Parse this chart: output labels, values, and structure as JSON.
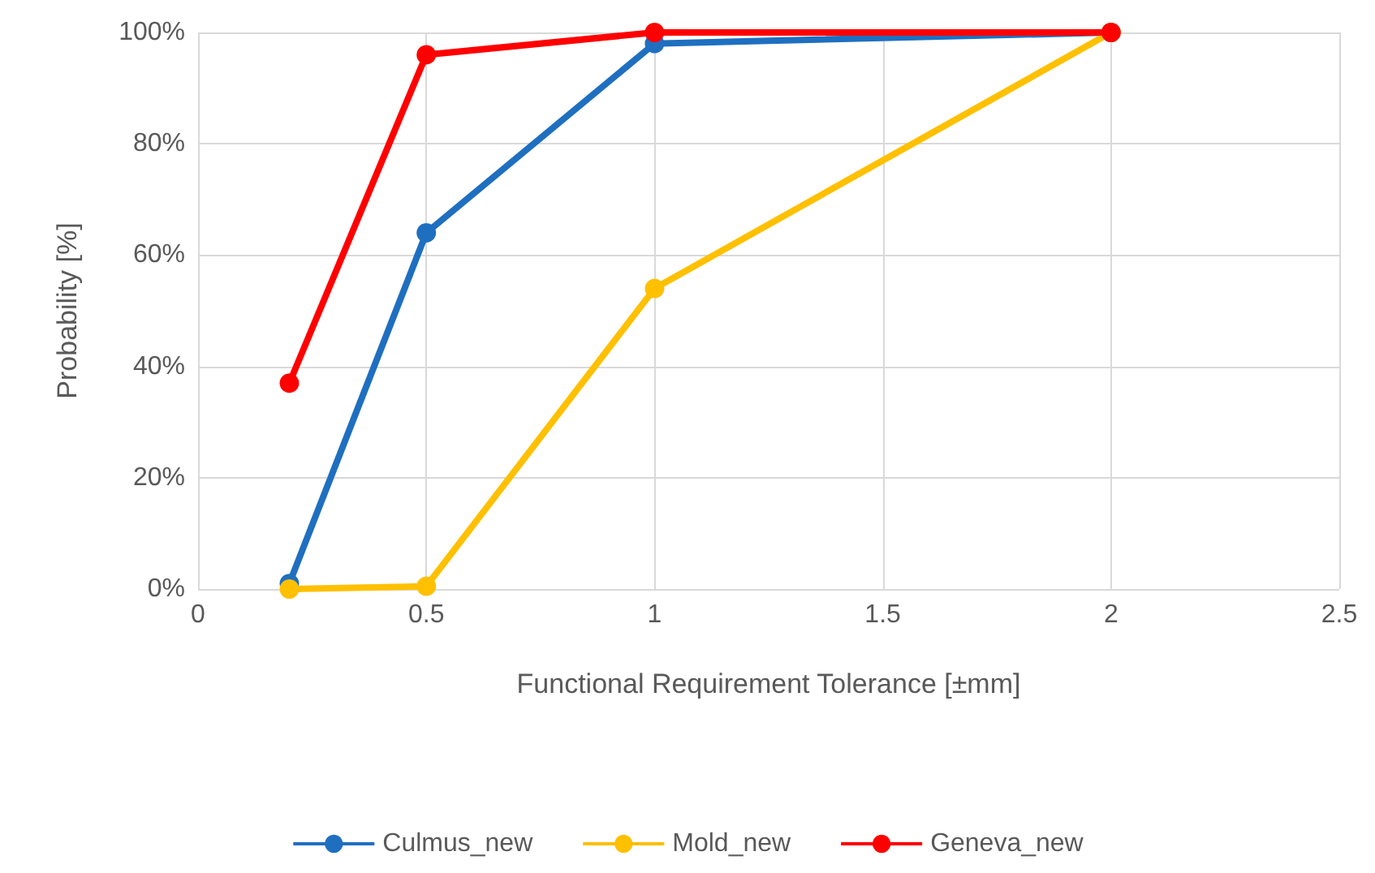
{
  "chart_data": {
    "type": "line",
    "xlabel": "Functional Requirement Tolerance [±mm]",
    "ylabel": "Probability [%]",
    "x": [
      0.2,
      0.5,
      1,
      2
    ],
    "series": [
      {
        "name": "Culmus_new",
        "color": "#1f6fc0",
        "values": [
          1,
          64,
          98,
          100
        ]
      },
      {
        "name": "Mold_new",
        "color": "#ffc000",
        "values": [
          0,
          0.5,
          54,
          100
        ]
      },
      {
        "name": "Geneva_new",
        "color": "#ff0000",
        "values": [
          37,
          96,
          100,
          100
        ]
      }
    ],
    "xlim": [
      0,
      2.5
    ],
    "xticks": [
      0,
      0.5,
      1,
      1.5,
      2,
      2.5
    ],
    "ylim": [
      0,
      100
    ],
    "yticks": [
      {
        "value": 0,
        "label": "0%"
      },
      {
        "value": 20,
        "label": "20%"
      },
      {
        "value": 40,
        "label": "40%"
      },
      {
        "value": 60,
        "label": "60%"
      },
      {
        "value": 80,
        "label": "80%"
      },
      {
        "value": 100,
        "label": "100%"
      }
    ],
    "grid": true,
    "legend": "bottom",
    "marker": "circle",
    "line_style": "solid"
  }
}
